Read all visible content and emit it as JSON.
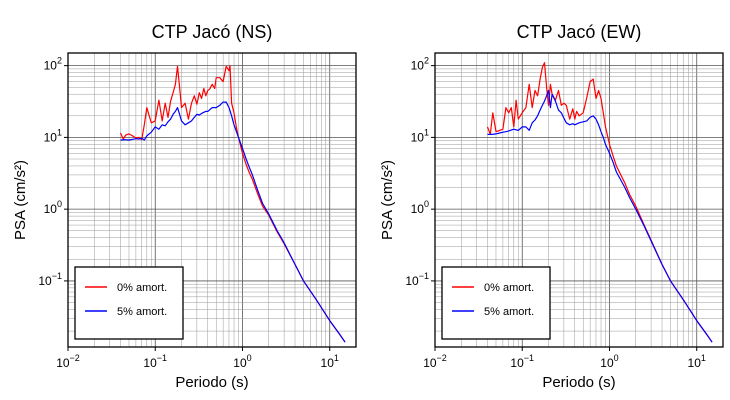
{
  "chart_data": [
    {
      "type": "line",
      "title": "CTP Jacó (NS)",
      "xlabel": "Periodo (s)",
      "ylabel": "PSA (cm/s²)",
      "xscale": "log",
      "yscale": "log",
      "xlim": [
        0.01,
        20
      ],
      "ylim": [
        0.012,
        150
      ],
      "grid": true,
      "legend_position": "bottom-left",
      "x_ticks": [
        {
          "base": "10",
          "exp": "−2"
        },
        {
          "base": "10",
          "exp": "−1"
        },
        {
          "base": "10",
          "exp": "0"
        },
        {
          "base": "10",
          "exp": "1"
        }
      ],
      "y_ticks": [
        {
          "base": "10",
          "exp": "−1"
        },
        {
          "base": "10",
          "exp": "0"
        },
        {
          "base": "10",
          "exp": "1"
        },
        {
          "base": "10",
          "exp": "2"
        }
      ],
      "series": [
        {
          "name": "0% amort.",
          "color": "#ff0000",
          "x": [
            0.04,
            0.043,
            0.046,
            0.05,
            0.055,
            0.06,
            0.065,
            0.07,
            0.075,
            0.08,
            0.09,
            0.1,
            0.11,
            0.12,
            0.13,
            0.14,
            0.15,
            0.16,
            0.17,
            0.18,
            0.19,
            0.2,
            0.22,
            0.24,
            0.26,
            0.28,
            0.3,
            0.32,
            0.34,
            0.36,
            0.38,
            0.4,
            0.42,
            0.45,
            0.48,
            0.5,
            0.55,
            0.6,
            0.65,
            0.7,
            0.72,
            0.75,
            0.8,
            0.85,
            0.9,
            1.0,
            1.1,
            1.2,
            1.3,
            1.5,
            1.7,
            2.0,
            2.5,
            3.0,
            4.0,
            5.0,
            7.0,
            10.0,
            13.0,
            15.0
          ],
          "y": [
            11.5,
            9.5,
            10.8,
            11.2,
            10.5,
            9.8,
            10.0,
            9.3,
            15,
            26,
            16,
            17,
            33,
            17,
            30,
            19,
            32,
            42,
            55,
            98,
            50,
            26,
            30,
            18,
            30,
            38,
            29,
            42,
            35,
            48,
            38,
            45,
            47,
            55,
            48,
            68,
            68,
            60,
            98,
            85,
            100,
            30,
            22,
            14,
            10,
            6.0,
            4.2,
            3.2,
            2.6,
            1.6,
            1.1,
            0.82,
            0.48,
            0.33,
            0.17,
            0.1,
            0.055,
            0.028,
            0.018,
            0.014
          ]
        },
        {
          "name": "5% amort.",
          "color": "#0000ff",
          "x": [
            0.04,
            0.045,
            0.05,
            0.055,
            0.06,
            0.065,
            0.07,
            0.075,
            0.08,
            0.09,
            0.1,
            0.11,
            0.12,
            0.13,
            0.14,
            0.15,
            0.16,
            0.17,
            0.18,
            0.19,
            0.2,
            0.22,
            0.24,
            0.26,
            0.28,
            0.3,
            0.32,
            0.35,
            0.38,
            0.4,
            0.45,
            0.5,
            0.55,
            0.6,
            0.65,
            0.7,
            0.75,
            0.8,
            0.9,
            1.0,
            1.1,
            1.2,
            1.3,
            1.5,
            1.7,
            2.0,
            2.5,
            3.0,
            4.0,
            5.0,
            7.0,
            10.0,
            13.0,
            15.0
          ],
          "y": [
            9.2,
            9.3,
            9.2,
            9.4,
            9.6,
            9.5,
            9.7,
            9.2,
            10.5,
            11.8,
            14,
            13,
            15,
            14.5,
            16.5,
            18,
            21,
            23,
            26,
            21,
            17,
            15,
            16,
            17,
            19,
            21,
            20.5,
            22,
            23,
            23,
            26,
            26,
            28,
            31,
            31,
            26,
            20,
            15,
            10,
            7.0,
            5.0,
            3.8,
            3.0,
            1.8,
            1.2,
            0.85,
            0.5,
            0.34,
            0.17,
            0.1,
            0.055,
            0.028,
            0.018,
            0.014
          ]
        }
      ]
    },
    {
      "type": "line",
      "title": "CTP Jacó (EW)",
      "xlabel": "Periodo (s)",
      "ylabel": "PSA (cm/s²)",
      "xscale": "log",
      "yscale": "log",
      "xlim": [
        0.01,
        20
      ],
      "ylim": [
        0.012,
        150
      ],
      "grid": true,
      "legend_position": "bottom-left",
      "x_ticks": [
        {
          "base": "10",
          "exp": "−2"
        },
        {
          "base": "10",
          "exp": "−1"
        },
        {
          "base": "10",
          "exp": "0"
        },
        {
          "base": "10",
          "exp": "1"
        }
      ],
      "y_ticks": [
        {
          "base": "10",
          "exp": "−1"
        },
        {
          "base": "10",
          "exp": "0"
        },
        {
          "base": "10",
          "exp": "1"
        },
        {
          "base": "10",
          "exp": "2"
        }
      ],
      "series": [
        {
          "name": "0% amort.",
          "color": "#ff0000",
          "x": [
            0.04,
            0.043,
            0.046,
            0.05,
            0.055,
            0.06,
            0.065,
            0.07,
            0.075,
            0.08,
            0.085,
            0.09,
            0.1,
            0.11,
            0.12,
            0.13,
            0.14,
            0.15,
            0.16,
            0.17,
            0.18,
            0.19,
            0.2,
            0.21,
            0.22,
            0.24,
            0.26,
            0.28,
            0.3,
            0.32,
            0.35,
            0.38,
            0.4,
            0.42,
            0.45,
            0.5,
            0.55,
            0.6,
            0.65,
            0.7,
            0.75,
            0.8,
            0.85,
            0.9,
            1.0,
            1.1,
            1.2,
            1.5,
            1.7,
            2.0,
            2.5,
            3.0,
            4.0,
            5.0,
            7.0,
            10.0,
            13.0,
            15.0
          ],
          "y": [
            14,
            11,
            22,
            12,
            12.5,
            13,
            26,
            22,
            26,
            14,
            33,
            18,
            22,
            26,
            55,
            26,
            45,
            38,
            65,
            95,
            110,
            50,
            28,
            55,
            40,
            33,
            45,
            28,
            30,
            28,
            18,
            25,
            18,
            23,
            20,
            22,
            36,
            60,
            65,
            35,
            45,
            35,
            22,
            14,
            8.0,
            5.5,
            4.0,
            2.3,
            1.6,
            1.1,
            0.6,
            0.37,
            0.17,
            0.1,
            0.055,
            0.028,
            0.018,
            0.014
          ]
        },
        {
          "name": "5% amort.",
          "color": "#0000ff",
          "x": [
            0.04,
            0.045,
            0.05,
            0.055,
            0.06,
            0.065,
            0.07,
            0.08,
            0.09,
            0.1,
            0.11,
            0.12,
            0.13,
            0.14,
            0.15,
            0.16,
            0.17,
            0.18,
            0.19,
            0.2,
            0.21,
            0.22,
            0.24,
            0.26,
            0.28,
            0.3,
            0.32,
            0.35,
            0.38,
            0.4,
            0.45,
            0.5,
            0.55,
            0.6,
            0.65,
            0.7,
            0.75,
            0.8,
            0.85,
            0.9,
            1.0,
            1.1,
            1.2,
            1.5,
            1.7,
            2.0,
            2.5,
            3.0,
            4.0,
            5.0,
            7.0,
            10.0,
            13.0,
            15.0
          ],
          "y": [
            11,
            11,
            11.2,
            11.5,
            11.8,
            12,
            12.3,
            13,
            12.5,
            14,
            14,
            12.5,
            16,
            17.5,
            20,
            24,
            28,
            32,
            38,
            45,
            26,
            40,
            32,
            24,
            22,
            18.5,
            16,
            15,
            15.5,
            15,
            16,
            16.5,
            17,
            19,
            20,
            18,
            15,
            12,
            10,
            8.0,
            6.0,
            4.5,
            3.3,
            2.0,
            1.45,
            1.0,
            0.58,
            0.36,
            0.17,
            0.1,
            0.055,
            0.028,
            0.018,
            0.014
          ]
        }
      ]
    }
  ]
}
